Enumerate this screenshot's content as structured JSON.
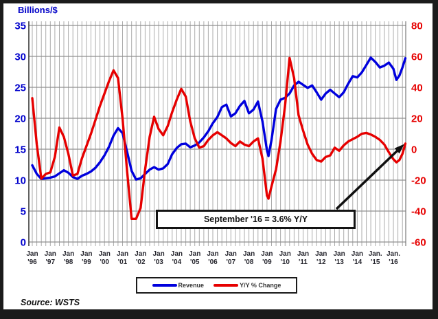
{
  "page": {
    "source": "Source: WSTS"
  },
  "chart_data": {
    "type": "line",
    "title": "",
    "left_axis": {
      "label": "Billions/$",
      "ticks": [
        35,
        30,
        25,
        20,
        15,
        10,
        5,
        0
      ],
      "range": [
        0,
        35
      ],
      "color": "#0000cc"
    },
    "right_axis": {
      "label": "Y/Y % Change",
      "ticks": [
        80,
        60,
        40,
        20,
        0,
        -20,
        -40,
        -60
      ],
      "range": [
        -60,
        80
      ],
      "color": "#e60000"
    },
    "x_axis": {
      "unit": "months since Jan 1996",
      "gridlines": "quarterly",
      "tick_labels": [
        {
          "top": "Jan",
          "bottom": "'96"
        },
        {
          "top": "Jan",
          "bottom": "'97"
        },
        {
          "top": "Jan",
          "bottom": "'98"
        },
        {
          "top": "Jan",
          "bottom": "'99"
        },
        {
          "top": "Jan",
          "bottom": "'00"
        },
        {
          "top": "Jan",
          "bottom": "'01"
        },
        {
          "top": "Jan",
          "bottom": "'02"
        },
        {
          "top": "Jan",
          "bottom": "'03"
        },
        {
          "top": "Jan",
          "bottom": "'04"
        },
        {
          "top": "Jan",
          "bottom": "'05"
        },
        {
          "top": "Jan",
          "bottom": "'06"
        },
        {
          "top": "Jan",
          "bottom": "'07"
        },
        {
          "top": "Jan",
          "bottom": "'08"
        },
        {
          "top": "Jan",
          "bottom": "'09"
        },
        {
          "top": "Jan",
          "bottom": "'10"
        },
        {
          "top": "Jan",
          "bottom": "'11"
        },
        {
          "top": "Jan",
          "bottom": "'12"
        },
        {
          "top": "Jan",
          "bottom": "'13"
        },
        {
          "top": "Jan",
          "bottom": "'14"
        },
        {
          "top": "Jan.",
          "bottom": "'15"
        },
        {
          "top": "Jan.",
          "bottom": "'16"
        }
      ]
    },
    "annotation": {
      "text": "September '16 = 3.6% Y/Y",
      "points_to": {
        "month_of_series": "Sep 2016",
        "value_pct": 3.6
      }
    },
    "series": [
      {
        "name": "Revenue",
        "axis": "left",
        "color": "#0000dd",
        "months": [
          0,
          3,
          6,
          9,
          12,
          15,
          18,
          21,
          24,
          27,
          30,
          33,
          36,
          39,
          42,
          45,
          48,
          51,
          54,
          57,
          60,
          63,
          66,
          69,
          72,
          75,
          78,
          81,
          84,
          87,
          90,
          93,
          96,
          99,
          102,
          105,
          108,
          111,
          114,
          117,
          120,
          123,
          126,
          129,
          132,
          135,
          138,
          141,
          144,
          147,
          150,
          153,
          156,
          157,
          159,
          162,
          165,
          168,
          171,
          174,
          177,
          180,
          183,
          186,
          189,
          192,
          195,
          198,
          201,
          204,
          207,
          210,
          213,
          216,
          219,
          222,
          225,
          228,
          231,
          234,
          237,
          240,
          242,
          244,
          246,
          248
        ],
        "values": [
          12.4,
          11.0,
          10.2,
          10.3,
          10.4,
          10.6,
          11.1,
          11.6,
          11.2,
          10.5,
          10.2,
          10.7,
          11.0,
          11.4,
          12.0,
          12.9,
          14.0,
          15.4,
          17.2,
          18.4,
          17.6,
          14.6,
          11.5,
          10.1,
          10.3,
          11.0,
          11.7,
          12.1,
          11.7,
          11.9,
          12.6,
          14.2,
          15.2,
          15.8,
          15.9,
          15.3,
          15.6,
          16.1,
          16.9,
          17.9,
          19.2,
          20.2,
          21.8,
          22.2,
          20.3,
          20.8,
          22.0,
          22.8,
          20.8,
          21.4,
          22.7,
          19.5,
          14.8,
          13.9,
          16.5,
          21.5,
          23.0,
          23.3,
          24.0,
          25.3,
          25.9,
          25.4,
          24.9,
          25.3,
          24.2,
          23.0,
          24.0,
          24.6,
          24.0,
          23.4,
          24.2,
          25.6,
          26.8,
          26.6,
          27.4,
          28.6,
          29.8,
          29.1,
          28.2,
          28.5,
          29.0,
          28.0,
          26.2,
          26.9,
          28.2,
          29.7
        ]
      },
      {
        "name": "Y/Y % Change",
        "axis": "right",
        "color": "#e60000",
        "months": [
          0,
          3,
          6,
          9,
          12,
          15,
          18,
          21,
          24,
          27,
          30,
          33,
          36,
          39,
          42,
          45,
          48,
          51,
          54,
          57,
          60,
          63,
          66,
          69,
          72,
          75,
          78,
          81,
          84,
          87,
          90,
          93,
          96,
          99,
          102,
          105,
          108,
          111,
          114,
          117,
          120,
          123,
          126,
          129,
          132,
          135,
          138,
          141,
          144,
          147,
          150,
          153,
          156,
          157,
          159,
          162,
          165,
          168,
          171,
          174,
          177,
          180,
          183,
          186,
          189,
          192,
          195,
          198,
          201,
          204,
          207,
          210,
          213,
          216,
          219,
          222,
          225,
          228,
          231,
          234,
          237,
          240,
          242,
          244,
          246,
          248
        ],
        "values": [
          33,
          3,
          -19,
          -16,
          -15,
          -5,
          14,
          8,
          -3,
          -17,
          -16,
          -6,
          2,
          10,
          19,
          28,
          36,
          44,
          51,
          46,
          20,
          -14,
          -45,
          -45,
          -38,
          -13,
          8,
          21,
          13,
          9,
          15,
          24,
          32,
          39,
          34,
          18,
          7,
          1,
          2,
          6,
          9,
          11,
          9,
          7,
          4,
          2,
          5,
          3,
          2,
          5,
          7,
          -6,
          -30,
          -32,
          -24,
          -13,
          5,
          28,
          59,
          46,
          22,
          12,
          3,
          -3,
          -7,
          -8,
          -5,
          -4,
          1,
          -1,
          2.5,
          5,
          6.5,
          8,
          10,
          10.5,
          9.5,
          8,
          6,
          3,
          -2,
          -6.5,
          -8.5,
          -7,
          -3,
          3.6
        ]
      }
    ]
  }
}
